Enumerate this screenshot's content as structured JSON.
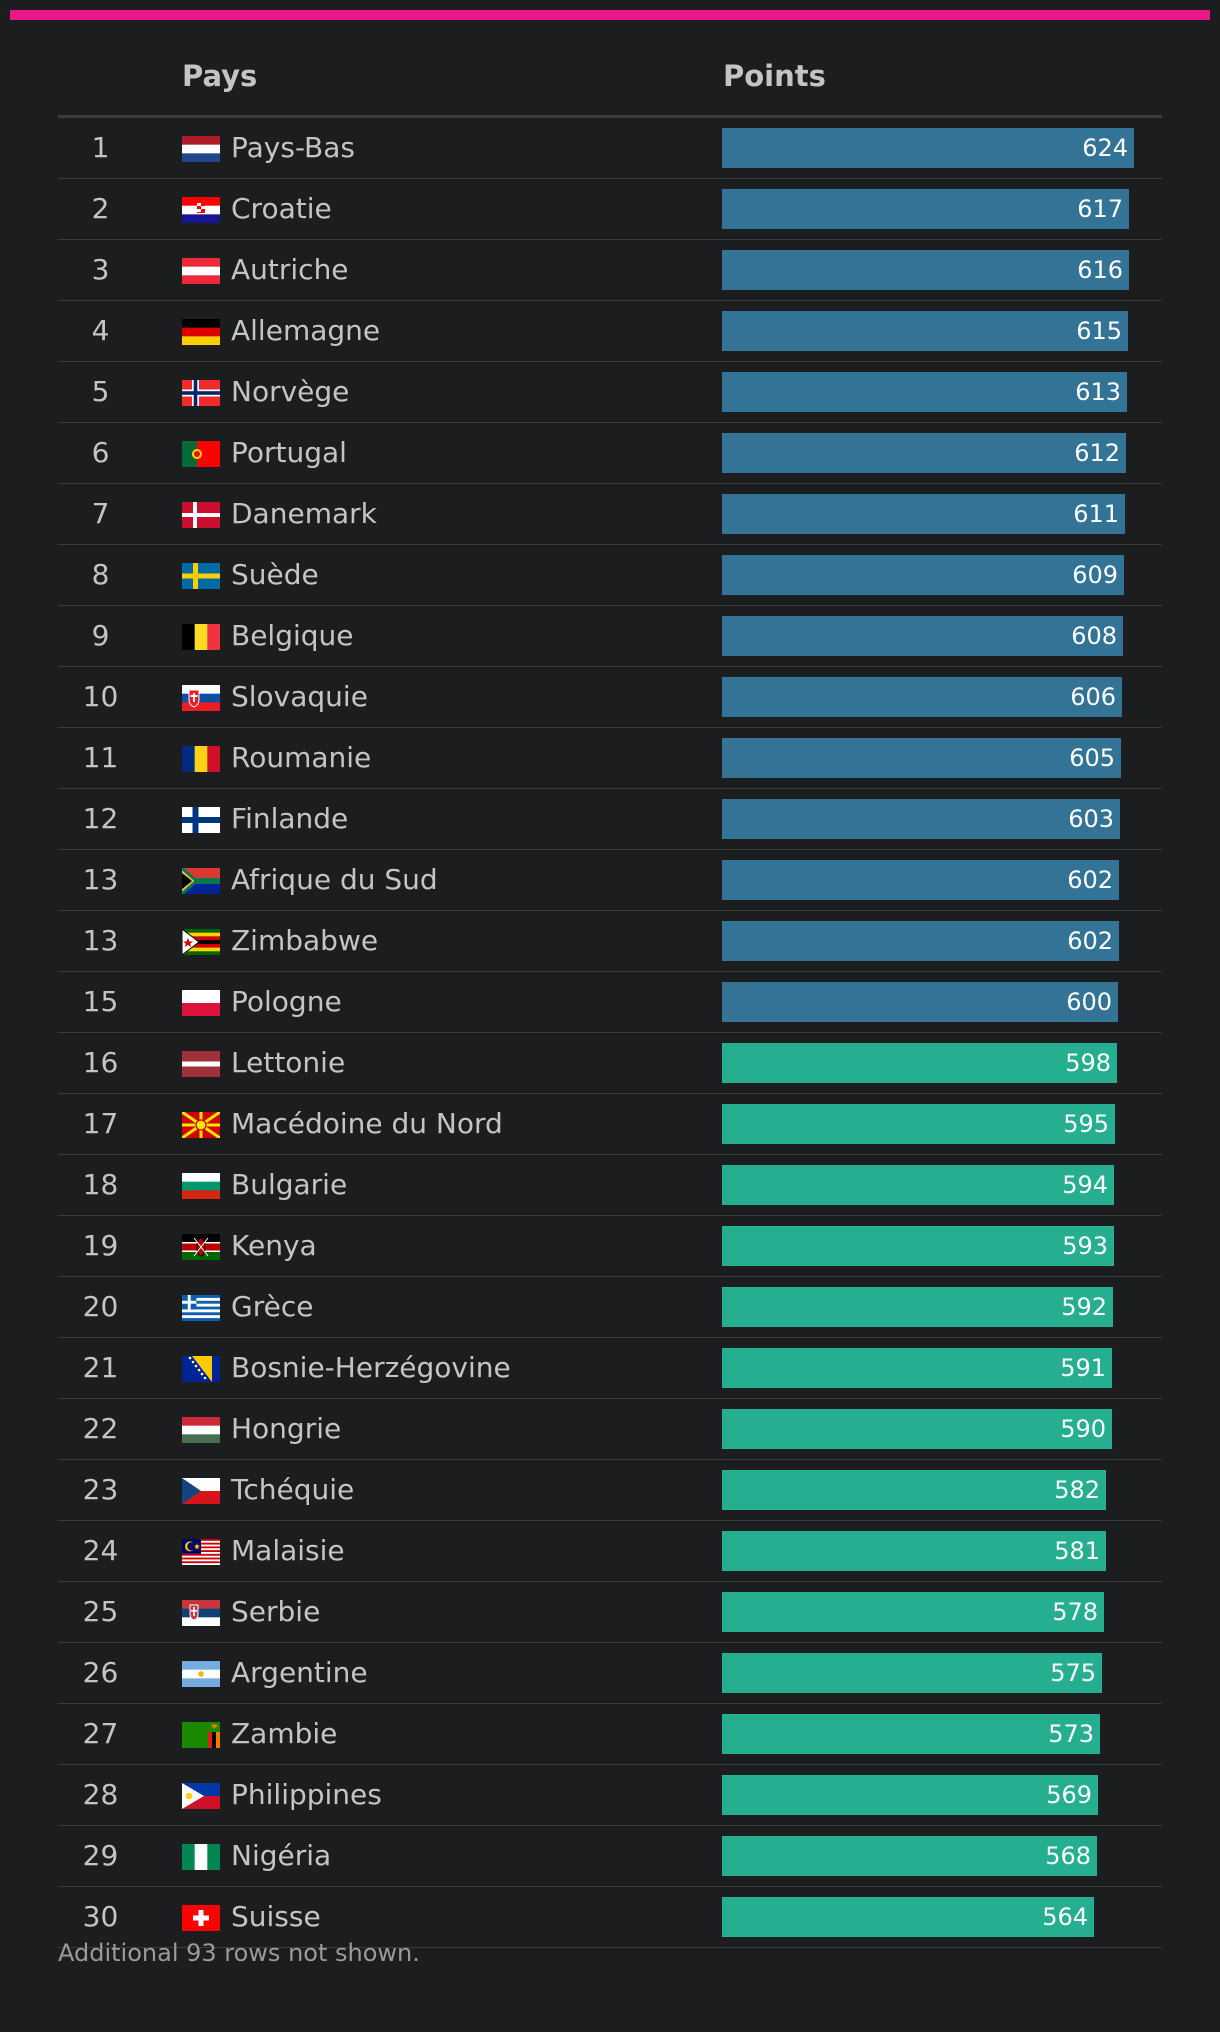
{
  "header": {
    "country_label": "Pays",
    "points_label": "Points"
  },
  "footnote": "Additional 93 rows not shown.",
  "colors": {
    "accent": "#e8178a",
    "bar_top15": "#327396",
    "bar_rest": "#25ae8f",
    "background": "#1c1d1f"
  },
  "chart_data": {
    "type": "bar",
    "orientation": "horizontal",
    "columns": [
      "Pays",
      "Points"
    ],
    "xlim": [
      0,
      624
    ],
    "rows": [
      {
        "rank": "1",
        "country": "Pays-Bas",
        "flag": "nl",
        "points": 624,
        "group": "top"
      },
      {
        "rank": "2",
        "country": "Croatie",
        "flag": "hr",
        "points": 617,
        "group": "top"
      },
      {
        "rank": "3",
        "country": "Autriche",
        "flag": "at",
        "points": 616,
        "group": "top"
      },
      {
        "rank": "4",
        "country": "Allemagne",
        "flag": "de",
        "points": 615,
        "group": "top"
      },
      {
        "rank": "5",
        "country": "Norvège",
        "flag": "no",
        "points": 613,
        "group": "top"
      },
      {
        "rank": "6",
        "country": "Portugal",
        "flag": "pt",
        "points": 612,
        "group": "top"
      },
      {
        "rank": "7",
        "country": "Danemark",
        "flag": "dk",
        "points": 611,
        "group": "top"
      },
      {
        "rank": "8",
        "country": "Suède",
        "flag": "se",
        "points": 609,
        "group": "top"
      },
      {
        "rank": "9",
        "country": "Belgique",
        "flag": "be",
        "points": 608,
        "group": "top"
      },
      {
        "rank": "10",
        "country": "Slovaquie",
        "flag": "sk",
        "points": 606,
        "group": "top"
      },
      {
        "rank": "11",
        "country": "Roumanie",
        "flag": "ro",
        "points": 605,
        "group": "top"
      },
      {
        "rank": "12",
        "country": "Finlande",
        "flag": "fi",
        "points": 603,
        "group": "top"
      },
      {
        "rank": "13",
        "country": "Afrique du Sud",
        "flag": "za",
        "points": 602,
        "group": "top"
      },
      {
        "rank": "13",
        "country": "Zimbabwe",
        "flag": "zw",
        "points": 602,
        "group": "top"
      },
      {
        "rank": "15",
        "country": "Pologne",
        "flag": "pl",
        "points": 600,
        "group": "top"
      },
      {
        "rank": "16",
        "country": "Lettonie",
        "flag": "lv",
        "points": 598,
        "group": "rest"
      },
      {
        "rank": "17",
        "country": "Macédoine du Nord",
        "flag": "mk",
        "points": 595,
        "group": "rest"
      },
      {
        "rank": "18",
        "country": "Bulgarie",
        "flag": "bg",
        "points": 594,
        "group": "rest"
      },
      {
        "rank": "19",
        "country": "Kenya",
        "flag": "ke",
        "points": 593,
        "group": "rest"
      },
      {
        "rank": "20",
        "country": "Grèce",
        "flag": "gr",
        "points": 592,
        "group": "rest"
      },
      {
        "rank": "21",
        "country": "Bosnie-Herzégovine",
        "flag": "ba",
        "points": 591,
        "group": "rest"
      },
      {
        "rank": "22",
        "country": "Hongrie",
        "flag": "hu",
        "points": 590,
        "group": "rest"
      },
      {
        "rank": "23",
        "country": "Tchéquie",
        "flag": "cz",
        "points": 582,
        "group": "rest"
      },
      {
        "rank": "24",
        "country": "Malaisie",
        "flag": "my",
        "points": 581,
        "group": "rest"
      },
      {
        "rank": "25",
        "country": "Serbie",
        "flag": "rs",
        "points": 578,
        "group": "rest"
      },
      {
        "rank": "26",
        "country": "Argentine",
        "flag": "ar",
        "points": 575,
        "group": "rest"
      },
      {
        "rank": "27",
        "country": "Zambie",
        "flag": "zm",
        "points": 573,
        "group": "rest"
      },
      {
        "rank": "28",
        "country": "Philippines",
        "flag": "ph",
        "points": 569,
        "group": "rest"
      },
      {
        "rank": "29",
        "country": "Nigéria",
        "flag": "ng",
        "points": 568,
        "group": "rest"
      },
      {
        "rank": "30",
        "country": "Suisse",
        "flag": "ch",
        "points": 564,
        "group": "rest"
      }
    ]
  }
}
